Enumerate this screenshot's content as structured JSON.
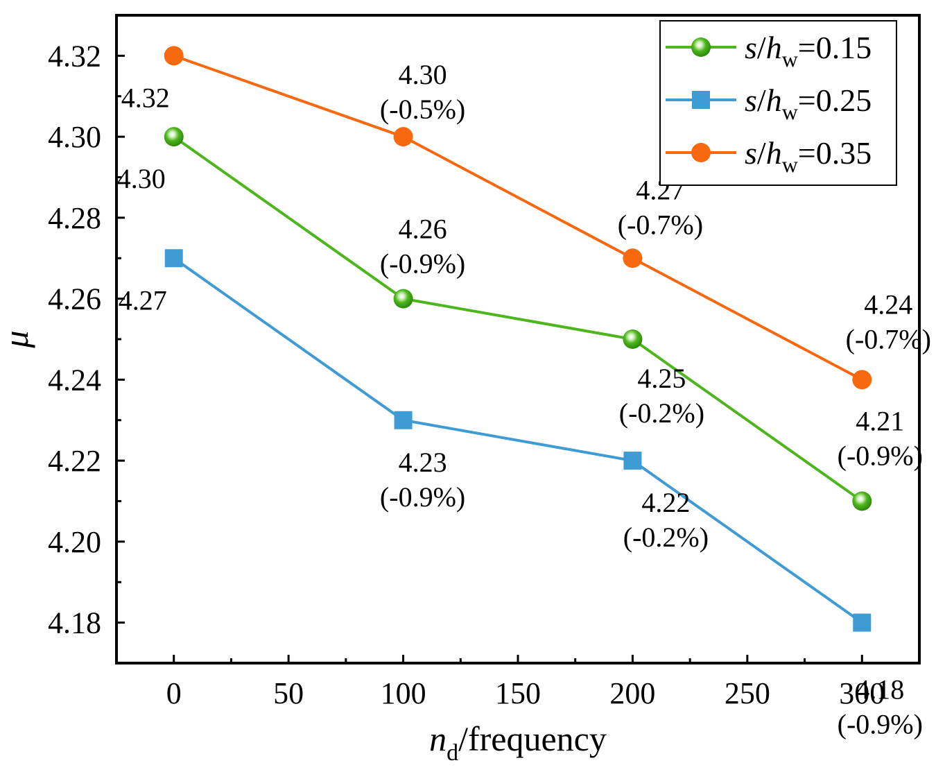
{
  "chart_data": {
    "type": "line",
    "title": "",
    "x": [
      0,
      100,
      200,
      300
    ],
    "xlim": [
      -25,
      325
    ],
    "ylim": [
      4.17,
      4.33
    ],
    "xticks": [
      "0",
      "50",
      "100",
      "150",
      "200",
      "250",
      "300"
    ],
    "xtick_values": [
      0,
      50,
      100,
      150,
      200,
      250,
      300
    ],
    "yticks": [
      "4.18",
      "4.20",
      "4.22",
      "4.24",
      "4.26",
      "4.28",
      "4.30",
      "4.32"
    ],
    "ytick_values": [
      4.18,
      4.2,
      4.22,
      4.24,
      4.26,
      4.28,
      4.3,
      4.32
    ],
    "xlabel": {
      "main": "n",
      "sub": "d",
      "rest": "/frequency"
    },
    "ylabel": "μ",
    "legend_position": "top-right",
    "series": [
      {
        "id": "s015",
        "legend": {
          "s": "s",
          "slash": "/",
          "h": "h",
          "sub": "w",
          "eq": "=0.15"
        },
        "color": "#4cb61c",
        "marker": "sphere",
        "values": [
          4.3,
          4.26,
          4.25,
          4.21
        ],
        "labels": [
          [
            "4.30"
          ],
          [
            "4.26",
            "(-0.9%)"
          ],
          [
            "4.25",
            "(-0.2%)"
          ],
          [
            "4.21",
            "(-0.9%)"
          ]
        ]
      },
      {
        "id": "s025",
        "legend": {
          "s": "s",
          "slash": "/",
          "h": "h",
          "sub": "w",
          "eq": "=0.25"
        },
        "color": "#3e9bd4",
        "marker": "square",
        "values": [
          4.27,
          4.23,
          4.22,
          4.18
        ],
        "labels": [
          [
            "4.27"
          ],
          [
            "4.23",
            "(-0.9%)"
          ],
          [
            "4.22",
            "(-0.2%)"
          ],
          [
            "4.18",
            "(-0.9%)"
          ]
        ]
      },
      {
        "id": "s035",
        "legend": {
          "s": "s",
          "slash": "/",
          "h": "h",
          "sub": "w",
          "eq": "=0.35"
        },
        "color": "#f7680f",
        "marker": "circle",
        "values": [
          4.32,
          4.3,
          4.27,
          4.24
        ],
        "labels": [
          [
            "4.32"
          ],
          [
            "4.30",
            "(-0.5%)"
          ],
          [
            "4.27",
            "(-0.7%)"
          ],
          [
            "4.24",
            "(-0.7%)"
          ]
        ]
      }
    ]
  }
}
